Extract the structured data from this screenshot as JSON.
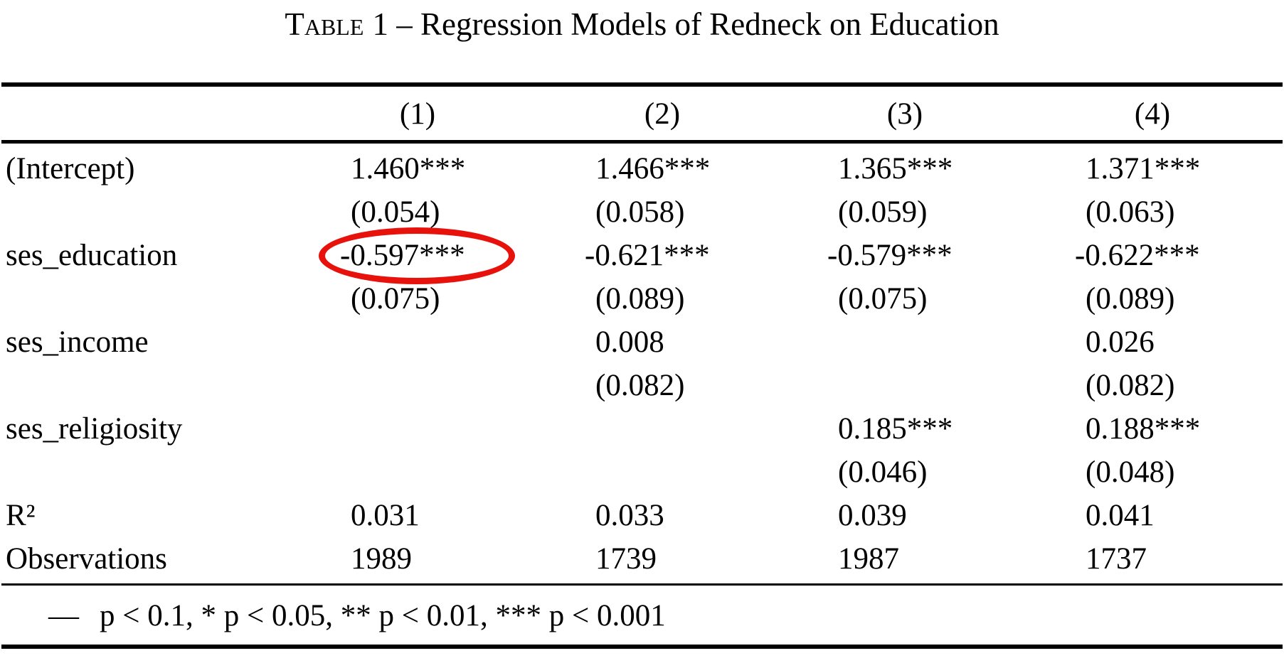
{
  "title": {
    "small_caps_word": "Table",
    "rest": "1 – Regression Models of Redneck on Education"
  },
  "columns": {
    "headers": [
      "(1)",
      "(2)",
      "(3)",
      "(4)"
    ]
  },
  "body": {
    "coef_rows": [
      {
        "label": "(Intercept)",
        "estimates": [
          "1.460***",
          "1.466***",
          "1.365***",
          "1.371***"
        ],
        "std_errors": [
          "(0.054)",
          "(0.058)",
          "(0.059)",
          "(0.063)"
        ]
      },
      {
        "label": "ses_education",
        "estimates": [
          "-0.597***",
          "-0.621***",
          "-0.579***",
          "-0.622***"
        ],
        "std_errors": [
          "(0.075)",
          "(0.089)",
          "(0.075)",
          "(0.089)"
        ]
      },
      {
        "label": "ses_income",
        "estimates": [
          "",
          "0.008",
          "",
          "0.026"
        ],
        "std_errors": [
          "",
          "(0.082)",
          "",
          "(0.082)"
        ]
      },
      {
        "label": "ses_religiosity",
        "estimates": [
          "",
          "",
          "0.185***",
          "0.188***"
        ],
        "std_errors": [
          "",
          "",
          "(0.046)",
          "(0.048)"
        ]
      }
    ],
    "gof_rows": [
      {
        "label": "R²",
        "values": [
          "0.031",
          "0.033",
          "0.039",
          "0.041"
        ]
      },
      {
        "label": "Observations",
        "values": [
          "1989",
          "1739",
          "1987",
          "1737"
        ]
      }
    ]
  },
  "footnote": {
    "marker": "—",
    "text": "p < 0.1, * p < 0.05, ** p < 0.01, *** p < 0.001"
  },
  "annotation": {
    "shape": "ellipse",
    "color": "#e8120c",
    "highlights": "ses_education coefficient in model (1)",
    "highlighted_value": "-0.597***"
  }
}
